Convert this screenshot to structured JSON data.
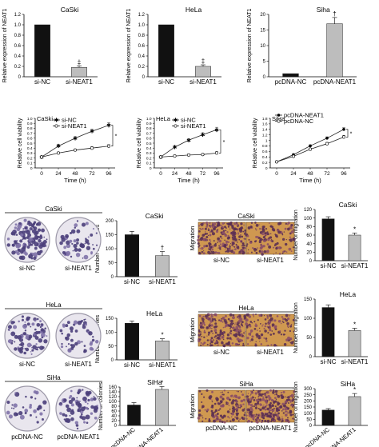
{
  "chart_data": [
    {
      "type": "bar",
      "panel": "expression-caski",
      "title": "CaSki",
      "ylabel": "Relative expression of NEAT1",
      "categories": [
        "si-NC",
        "si-NEAT1"
      ],
      "values": [
        1.0,
        0.18
      ],
      "errors": [
        0,
        0.03
      ],
      "ylim": [
        0,
        1.2
      ],
      "yticks": [
        "0",
        "0.2",
        "0.4",
        "0.6",
        "0.8",
        "1.0",
        "1.2"
      ],
      "markers": [
        "",
        "‡"
      ],
      "colors": [
        "#111111",
        "#bdbdbd"
      ]
    },
    {
      "type": "bar",
      "panel": "expression-hela",
      "title": "HeLa",
      "ylabel": "Relative expression of NEAT1",
      "categories": [
        "si-NC",
        "si-NEAT1"
      ],
      "values": [
        1.0,
        0.2
      ],
      "errors": [
        0,
        0.03
      ],
      "ylim": [
        0,
        1.2
      ],
      "yticks": [
        "0",
        "0.2",
        "0.4",
        "0.6",
        "0.8",
        "1.0",
        "1.2"
      ],
      "markers": [
        "",
        "‡"
      ],
      "colors": [
        "#111111",
        "#bdbdbd"
      ]
    },
    {
      "type": "bar",
      "panel": "expression-siha",
      "title": "Siha",
      "ylabel": "Relative expression of NEAT1",
      "categories": [
        "pcDNA-NC",
        "pcDNA-NEAT1"
      ],
      "values": [
        1.0,
        17.0
      ],
      "errors": [
        0,
        2.0
      ],
      "ylim": [
        0,
        20
      ],
      "yticks": [
        "0",
        "5",
        "10",
        "15",
        "20"
      ],
      "markers": [
        "",
        "†"
      ],
      "colors": [
        "#111111",
        "#bdbdbd"
      ]
    },
    {
      "type": "line",
      "panel": "viability-caski",
      "title": "CaSki",
      "xlabel": "Time (h)",
      "ylabel": "Relative cell viability",
      "x": [
        0,
        24,
        48,
        72,
        96
      ],
      "xticks": [
        "0",
        "24",
        "48",
        "72",
        "96"
      ],
      "ylim": [
        0,
        1.0
      ],
      "yticks": [
        "0",
        "0.1",
        "0.2",
        "0.3",
        "0.4",
        "0.5",
        "0.6",
        "0.7",
        "0.8",
        "0.9",
        "1.0"
      ],
      "legend": "top-left",
      "series": [
        {
          "name": "si-NC",
          "values": [
            0.22,
            0.44,
            0.6,
            0.74,
            0.86
          ],
          "errors": [
            0.02,
            0.03,
            0.03,
            0.04,
            0.05
          ],
          "marker": "star"
        },
        {
          "name": "si-NEAT1",
          "values": [
            0.22,
            0.3,
            0.36,
            0.4,
            0.44
          ],
          "errors": [
            0.02,
            0.02,
            0.02,
            0.03,
            0.03
          ],
          "marker": "open"
        }
      ],
      "annotation": "*"
    },
    {
      "type": "line",
      "panel": "viability-hela",
      "title": "HeLa",
      "xlabel": "Time (h)",
      "ylabel": "Relative cell viability",
      "x": [
        0,
        24,
        48,
        72,
        96
      ],
      "xticks": [
        "0",
        "24",
        "48",
        "72",
        "96"
      ],
      "ylim": [
        0,
        1.0
      ],
      "yticks": [
        "0",
        "0.1",
        "0.2",
        "0.3",
        "0.4",
        "0.5",
        "0.6",
        "0.7",
        "0.8",
        "0.9",
        "1.0"
      ],
      "legend": "top-left",
      "series": [
        {
          "name": "si-NC",
          "values": [
            0.22,
            0.42,
            0.56,
            0.67,
            0.77
          ],
          "errors": [
            0.02,
            0.03,
            0.03,
            0.04,
            0.05
          ],
          "marker": "star"
        },
        {
          "name": "si-NEAT1",
          "values": [
            0.22,
            0.24,
            0.26,
            0.27,
            0.3
          ],
          "errors": [
            0.02,
            0.02,
            0.02,
            0.02,
            0.03
          ],
          "marker": "open"
        }
      ],
      "annotation": "*"
    },
    {
      "type": "line",
      "panel": "viability-siha",
      "title": "SiHa",
      "xlabel": "Time (h)",
      "ylabel": "Relative cell viability",
      "x": [
        0,
        24,
        48,
        72,
        96
      ],
      "xticks": [
        "0",
        "24",
        "48",
        "72",
        "96"
      ],
      "ylim": [
        0,
        1.8
      ],
      "yticks": [
        "0",
        "0.2",
        "0.4",
        "0.6",
        "0.8",
        "1",
        "1.2",
        "1.4",
        "1.6",
        "1.8"
      ],
      "legend": "top-left",
      "series": [
        {
          "name": "pcDNA-NEAT1",
          "values": [
            0.22,
            0.48,
            0.8,
            1.08,
            1.4
          ],
          "errors": [
            0.02,
            0.03,
            0.04,
            0.05,
            0.06
          ],
          "marker": "filled"
        },
        {
          "name": "pcDNA-NC",
          "values": [
            0.22,
            0.42,
            0.68,
            0.88,
            1.12
          ],
          "errors": [
            0.02,
            0.03,
            0.04,
            0.05,
            0.06
          ],
          "marker": "open"
        }
      ],
      "annotation": "*"
    },
    {
      "type": "bar",
      "panel": "colonies-caski",
      "title": "CaSki",
      "ylabel": "Number of colonies",
      "categories": [
        "si-NC",
        "si-NEAT1"
      ],
      "values": [
        150,
        75
      ],
      "errors": [
        12,
        15
      ],
      "ylim": [
        0,
        200
      ],
      "yticks": [
        "0",
        "50",
        "100",
        "150",
        "200"
      ],
      "markers": [
        "",
        "†"
      ],
      "colors": [
        "#111111",
        "#bdbdbd"
      ]
    },
    {
      "type": "bar",
      "panel": "colonies-hela",
      "title": "HeLa",
      "ylabel": "Number of colonies",
      "categories": [
        "si-NC",
        "si-NEAT1"
      ],
      "values": [
        132,
        68
      ],
      "errors": [
        8,
        8
      ],
      "ylim": [
        0,
        150
      ],
      "yticks": [
        "0",
        "50",
        "100",
        "150"
      ],
      "markers": [
        "",
        "*"
      ],
      "colors": [
        "#111111",
        "#bdbdbd"
      ]
    },
    {
      "type": "bar",
      "panel": "colonies-siha",
      "title": "SiHa",
      "ylabel": "Number of colonies",
      "categories": [
        "pcDNA-NC",
        "pcDNA-NEAT1"
      ],
      "values": [
        85,
        150
      ],
      "errors": [
        10,
        12
      ],
      "ylim": [
        0,
        160
      ],
      "yticks": [
        "0",
        "20",
        "40",
        "60",
        "80",
        "100",
        "120",
        "140",
        "160"
      ],
      "markers": [
        "",
        "*"
      ],
      "colors": [
        "#111111",
        "#bdbdbd"
      ]
    },
    {
      "type": "bar",
      "panel": "migration-caski",
      "title": "CaSki",
      "ylabel": "Number of migration",
      "categories": [
        "si-NC",
        "si-NEAT1"
      ],
      "values": [
        98,
        60
      ],
      "errors": [
        5,
        5
      ],
      "ylim": [
        0,
        120
      ],
      "yticks": [
        "0",
        "20",
        "40",
        "60",
        "80",
        "100",
        "120"
      ],
      "markers": [
        "",
        "*"
      ],
      "colors": [
        "#111111",
        "#bdbdbd"
      ]
    },
    {
      "type": "bar",
      "panel": "migration-hela",
      "title": "HeLa",
      "ylabel": "Number of migration",
      "categories": [
        "si-NC",
        "si-NEAT1"
      ],
      "values": [
        128,
        68
      ],
      "errors": [
        7,
        6
      ],
      "ylim": [
        0,
        150
      ],
      "yticks": [
        "0",
        "50",
        "100",
        "150"
      ],
      "markers": [
        "",
        "*"
      ],
      "colors": [
        "#111111",
        "#bdbdbd"
      ]
    },
    {
      "type": "bar",
      "panel": "migration-siha",
      "title": "SiHa",
      "ylabel": "Number of migration",
      "categories": [
        "pcDNA-NC",
        "pcDNA-NEAT1"
      ],
      "values": [
        125,
        235
      ],
      "errors": [
        12,
        25
      ],
      "ylim": [
        0,
        300
      ],
      "yticks": [
        "0",
        "50",
        "100",
        "150",
        "200",
        "250",
        "300"
      ],
      "markers": [
        "",
        "*"
      ],
      "colors": [
        "#111111",
        "#bdbdbd"
      ]
    }
  ],
  "images": {
    "colony_caski": {
      "title": "CaSki",
      "labels": [
        "si-NC",
        "si-NEAT1"
      ]
    },
    "colony_hela": {
      "title": "HeLa",
      "labels": [
        "si-NC",
        "si-NEAT1"
      ]
    },
    "colony_siha": {
      "title": "SiHa",
      "labels": [
        "pcDNA-NC",
        "pcDNA-NEAT1"
      ]
    },
    "migration_caski": {
      "title": "CaSki",
      "side_label": "Migration",
      "labels": [
        "si-NC",
        "si-NEAT1"
      ]
    },
    "migration_hela": {
      "title": "HeLa",
      "side_label": "Migration",
      "labels": [
        "si-NC",
        "si-NEAT1"
      ]
    },
    "migration_siha": {
      "title": "SiHa",
      "side_label": "Migration",
      "labels": [
        "pcDNA-NC",
        "pcDNA-NEAT1"
      ]
    }
  }
}
